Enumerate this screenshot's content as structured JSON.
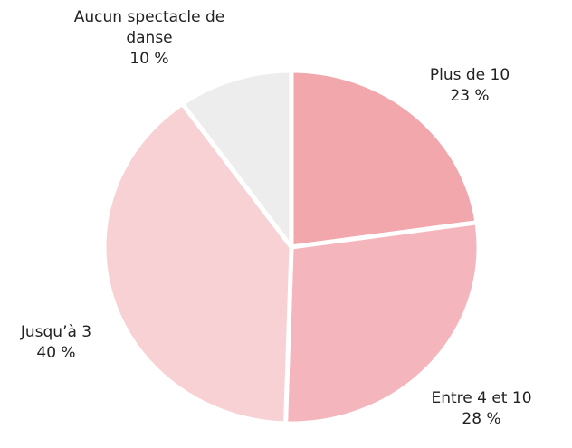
{
  "chart_data": {
    "type": "pie",
    "categories": [
      "Plus de 10",
      "Entre 4 et 10",
      "Jusqu’à 3",
      "Aucun spectacle de danse"
    ],
    "values": [
      23,
      28,
      40,
      10
    ],
    "value_labels": [
      "23 %",
      "28 %",
      "40 %",
      "10 %"
    ],
    "colors": [
      "#f2a7ad",
      "#f4b6bc",
      "#f7d1d4",
      "#ededed"
    ]
  }
}
